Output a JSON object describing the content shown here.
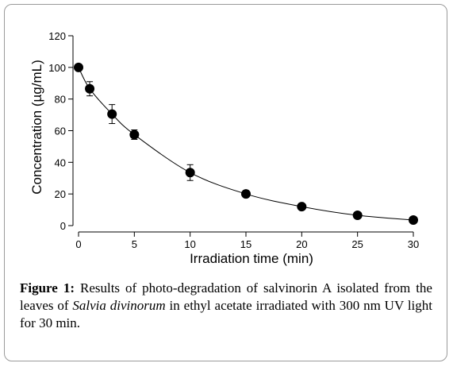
{
  "chart_data": {
    "type": "line",
    "x": [
      0,
      1,
      3,
      5,
      10,
      15,
      20,
      25,
      30
    ],
    "series": [
      {
        "values": [
          100,
          86.5,
          70.5,
          57.5,
          33.5,
          20,
          12,
          6.5,
          3.5
        ],
        "error": [
          0,
          4.5,
          6.0,
          3.0,
          5.0,
          0,
          0,
          0,
          0
        ],
        "marker": "filled-circle",
        "color": "#000000"
      }
    ],
    "xlabel": "Irradiation time (min)",
    "ylabel": "Concentration (µg/mL)",
    "xlim": [
      0,
      30
    ],
    "ylim": [
      0,
      120
    ],
    "xticks": [
      "0",
      "5",
      "10",
      "15",
      "20",
      "25",
      "30"
    ],
    "yticks": [
      "0",
      "20",
      "40",
      "60",
      "80",
      "100",
      "120"
    ],
    "grid": false
  },
  "caption": {
    "label": "Figure 1:",
    "text_before": " Results of photo-degradation of salvinorin A isolated from the leaves of ",
    "species": "Salvia divinorum",
    "text_after": " in ethyl acetate irradiated with 300 nm UV light for 30 min."
  }
}
